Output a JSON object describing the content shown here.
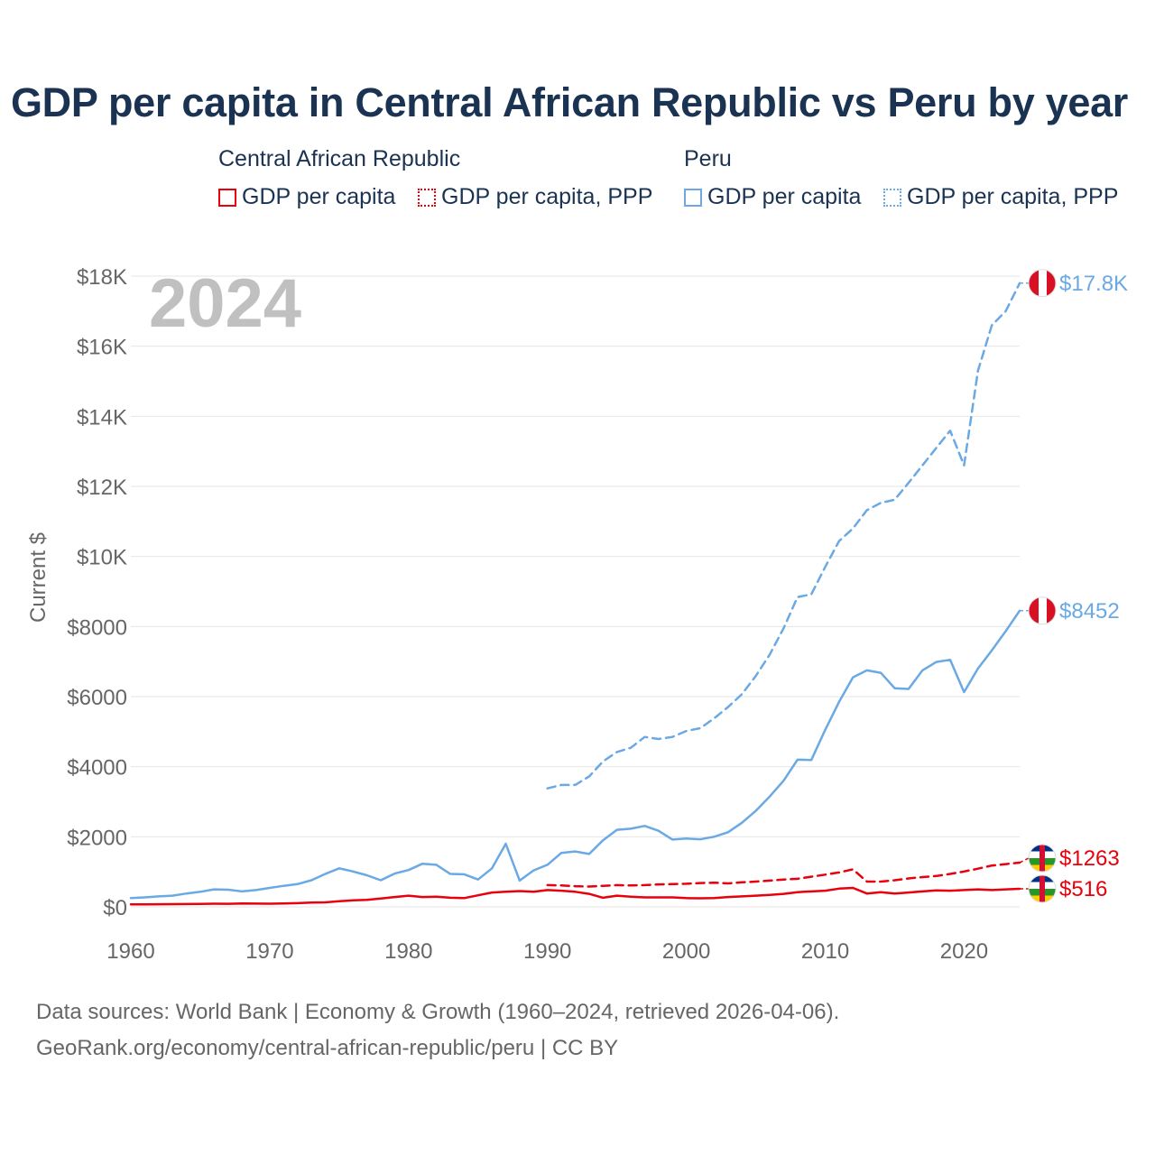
{
  "title": "GDP per capita in Central African Republic vs Peru by year",
  "legend": {
    "group1": {
      "name": "Central African Republic",
      "items": [
        "GDP per capita",
        "GDP per capita, PPP"
      ]
    },
    "group2": {
      "name": "Peru",
      "items": [
        "GDP per capita",
        "GDP per capita, PPP"
      ]
    }
  },
  "footer": {
    "line1": "Data sources: World Bank | Economy & Growth (1960–2024, retrieved 2026-04-06).",
    "line2": "GeoRank.org/economy/central-african-republic/peru | CC BY"
  },
  "colors": {
    "car": "#e8000d",
    "peru": "#6aa9e4",
    "title": "#1b3352",
    "axis_text": "#666666",
    "grid": "#e6e6e6",
    "year": "#c0c0c0"
  },
  "chart_data": {
    "type": "line",
    "title": "GDP per capita in Central African Republic vs Peru by year",
    "xlabel": "",
    "ylabel": "Current $",
    "xlim": [
      1960,
      2024
    ],
    "ylim": [
      0,
      18000
    ],
    "xticks": [
      1960,
      1970,
      1980,
      1990,
      2000,
      2010,
      2020
    ],
    "xtick_labels": [
      "1960",
      "1970",
      "1980",
      "1990",
      "2000",
      "2010",
      "2020"
    ],
    "yticks": [
      0,
      2000,
      4000,
      6000,
      8000,
      10000,
      12000,
      14000,
      16000,
      18000
    ],
    "ytick_labels": [
      "$0",
      "$2000",
      "$4000",
      "$6000",
      "$8000",
      "$10K",
      "$12K",
      "$14K",
      "$16K",
      "$18K"
    ],
    "year_label": "2024",
    "grid": true,
    "series": [
      {
        "name": "Central African Republic — GDP per capita",
        "country": "car",
        "style": "solid",
        "x": [
          1960,
          1961,
          1962,
          1963,
          1964,
          1965,
          1966,
          1967,
          1968,
          1969,
          1970,
          1971,
          1972,
          1973,
          1974,
          1975,
          1976,
          1977,
          1978,
          1979,
          1980,
          1981,
          1982,
          1983,
          1984,
          1985,
          1986,
          1987,
          1988,
          1989,
          1990,
          1991,
          1992,
          1993,
          1994,
          1995,
          1996,
          1997,
          1998,
          1999,
          2000,
          2001,
          2002,
          2003,
          2004,
          2005,
          2006,
          2007,
          2008,
          2009,
          2010,
          2011,
          2012,
          2013,
          2014,
          2015,
          2016,
          2017,
          2018,
          2019,
          2020,
          2021,
          2022,
          2023,
          2024
        ],
        "values": [
          70,
          73,
          75,
          78,
          80,
          85,
          90,
          88,
          95,
          92,
          90,
          95,
          105,
          120,
          130,
          160,
          185,
          200,
          240,
          280,
          320,
          280,
          290,
          260,
          250,
          330,
          410,
          430,
          450,
          430,
          480,
          460,
          430,
          370,
          260,
          320,
          290,
          270,
          270,
          270,
          250,
          245,
          250,
          280,
          300,
          320,
          340,
          370,
          420,
          440,
          460,
          520,
          540,
          380,
          420,
          380,
          410,
          440,
          470,
          460,
          480,
          500,
          480,
          500,
          516
        ],
        "end_label": "$516"
      },
      {
        "name": "Central African Republic — GDP per capita, PPP",
        "country": "car",
        "style": "dashed",
        "x": [
          1990,
          1991,
          1992,
          1993,
          1994,
          1995,
          1996,
          1997,
          1998,
          1999,
          2000,
          2001,
          2002,
          2003,
          2004,
          2005,
          2006,
          2007,
          2008,
          2009,
          2010,
          2011,
          2012,
          2013,
          2014,
          2015,
          2016,
          2017,
          2018,
          2019,
          2020,
          2021,
          2022,
          2023,
          2024
        ],
        "values": [
          620,
          610,
          590,
          580,
          600,
          620,
          610,
          620,
          640,
          650,
          660,
          680,
          690,
          670,
          700,
          720,
          750,
          780,
          800,
          860,
          920,
          980,
          1070,
          720,
          720,
          760,
          810,
          850,
          880,
          940,
          1010,
          1090,
          1180,
          1220,
          1263
        ],
        "end_label": "$1263"
      },
      {
        "name": "Peru — GDP per capita",
        "country": "peru",
        "style": "solid",
        "x": [
          1960,
          1961,
          1962,
          1963,
          1964,
          1965,
          1966,
          1967,
          1968,
          1969,
          1970,
          1971,
          1972,
          1973,
          1974,
          1975,
          1976,
          1977,
          1978,
          1979,
          1980,
          1981,
          1982,
          1983,
          1984,
          1985,
          1986,
          1987,
          1988,
          1989,
          1990,
          1991,
          1992,
          1993,
          1994,
          1995,
          1996,
          1997,
          1998,
          1999,
          2000,
          2001,
          2002,
          2003,
          2004,
          2005,
          2006,
          2007,
          2008,
          2009,
          2010,
          2011,
          2012,
          2013,
          2014,
          2015,
          2016,
          2017,
          2018,
          2019,
          2020,
          2021,
          2022,
          2023,
          2024
        ],
        "values": [
          250,
          270,
          300,
          320,
          380,
          430,
          500,
          490,
          440,
          480,
          540,
          600,
          650,
          760,
          940,
          1100,
          1010,
          900,
          760,
          950,
          1050,
          1230,
          1200,
          940,
          930,
          780,
          1100,
          1800,
          750,
          1040,
          1200,
          1540,
          1580,
          1510,
          1900,
          2200,
          2230,
          2310,
          2170,
          1920,
          1950,
          1930,
          2000,
          2130,
          2400,
          2740,
          3150,
          3600,
          4200,
          4190,
          5050,
          5850,
          6550,
          6750,
          6680,
          6240,
          6220,
          6750,
          6990,
          7050,
          6130,
          6800,
          7320,
          7870,
          8452
        ],
        "end_label": "$8452"
      },
      {
        "name": "Peru — GDP per capita, PPP",
        "country": "peru",
        "style": "dashed",
        "x": [
          1990,
          1991,
          1992,
          1993,
          1994,
          1995,
          1996,
          1997,
          1998,
          1999,
          2000,
          2001,
          2002,
          2003,
          2004,
          2005,
          2006,
          2007,
          2008,
          2009,
          2010,
          2011,
          2012,
          2013,
          2014,
          2015,
          2016,
          2017,
          2018,
          2019,
          2020,
          2021,
          2022,
          2023,
          2024
        ],
        "values": [
          3380,
          3480,
          3480,
          3720,
          4150,
          4420,
          4540,
          4850,
          4790,
          4850,
          5020,
          5100,
          5380,
          5700,
          6070,
          6590,
          7200,
          7950,
          8840,
          8920,
          9700,
          10440,
          10800,
          11320,
          11530,
          11620,
          12100,
          12600,
          13100,
          13590,
          12600,
          15300,
          16600,
          17000,
          17800
        ],
        "end_label": "$17.8K"
      }
    ]
  }
}
